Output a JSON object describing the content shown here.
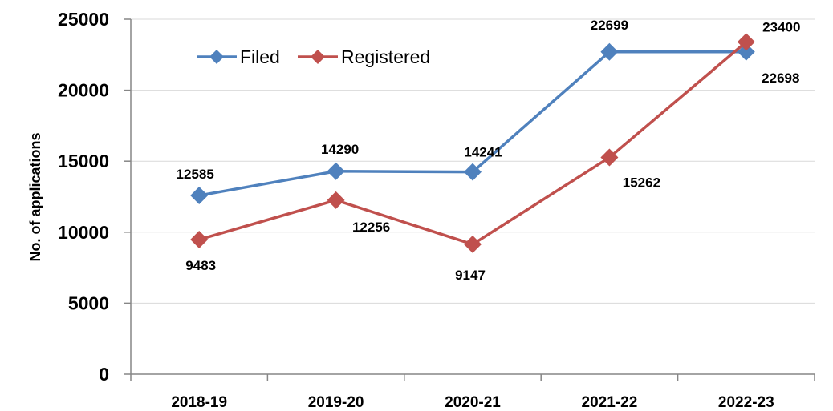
{
  "chart_data": {
    "type": "line",
    "title": "",
    "xlabel": "",
    "ylabel": "No. of applications",
    "categories": [
      "2018-19",
      "2019-20",
      "2020-21",
      "2021-22",
      "2022-23"
    ],
    "ylim": [
      0,
      25000
    ],
    "yticks": [
      0,
      5000,
      10000,
      15000,
      20000,
      25000
    ],
    "grid": true,
    "legend": "top-left",
    "series": [
      {
        "name": "Filed",
        "color": "#4F81BD",
        "marker": "diamond",
        "values": [
          12585,
          14290,
          14241,
          22699,
          22698
        ],
        "data_labels": [
          "12585",
          "14290",
          "14241",
          "22699",
          "22698"
        ]
      },
      {
        "name": "Registered",
        "color": "#C0504D",
        "marker": "diamond",
        "values": [
          9483,
          12256,
          9147,
          15262,
          23400
        ],
        "data_labels": [
          "9483",
          "12256",
          "9147",
          "15262",
          "23400"
        ]
      }
    ]
  }
}
